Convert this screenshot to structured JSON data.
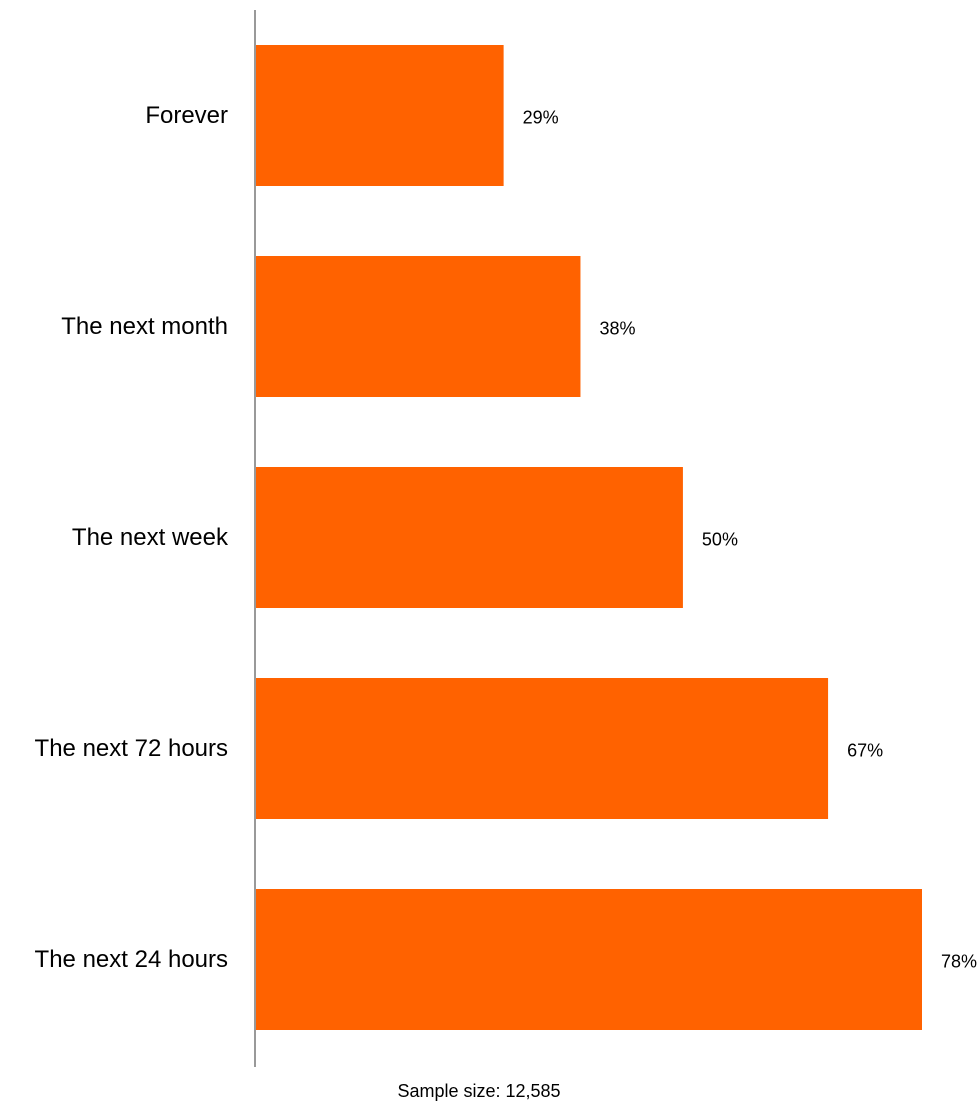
{
  "chart_data": {
    "type": "bar",
    "orientation": "horizontal",
    "categories": [
      "Forever",
      "The next month",
      "The next week",
      "The next 72 hours",
      "The next 24 hours"
    ],
    "values": [
      29,
      38,
      50,
      67,
      78
    ],
    "value_labels": [
      "29%",
      "38%",
      "50%",
      "67%",
      "78%"
    ],
    "unit": "%",
    "xlim": [
      0,
      78
    ],
    "bar_color": "#FF6200",
    "axis_color": "#999999",
    "grid": false,
    "legend": "none",
    "note": "Sample size: 12,585"
  }
}
